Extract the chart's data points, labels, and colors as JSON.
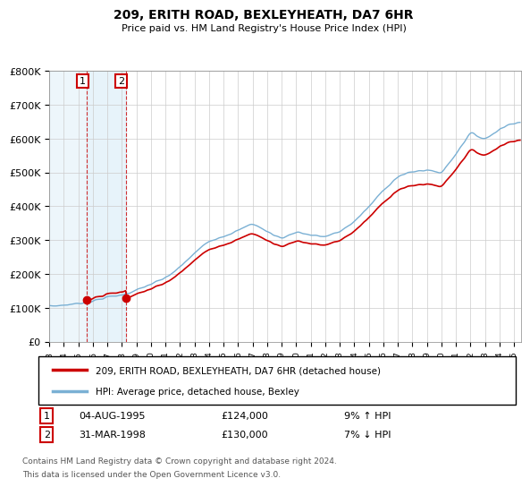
{
  "title": "209, ERITH ROAD, BEXLEYHEATH, DA7 6HR",
  "subtitle": "Price paid vs. HM Land Registry's House Price Index (HPI)",
  "ylim": [
    0,
    800000
  ],
  "yticks": [
    0,
    100000,
    200000,
    300000,
    400000,
    500000,
    600000,
    700000,
    800000
  ],
  "ytick_labels": [
    "£0",
    "£100K",
    "£200K",
    "£300K",
    "£400K",
    "£500K",
    "£600K",
    "£700K",
    "£800K"
  ],
  "sale1_date": "04-AUG-1995",
  "sale1_price": 124000,
  "sale1_hpi_pct": "9% ↑ HPI",
  "sale2_date": "31-MAR-1998",
  "sale2_price": 130000,
  "sale2_hpi_pct": "7% ↓ HPI",
  "sale1_year": 1995.583,
  "sale2_year": 1998.25,
  "line_color_price": "#cc0000",
  "line_color_hpi": "#7ab0d4",
  "legend_label1": "209, ERITH ROAD, BEXLEYHEATH, DA7 6HR (detached house)",
  "legend_label2": "HPI: Average price, detached house, Bexley",
  "footnote_line1": "Contains HM Land Registry data © Crown copyright and database right 2024.",
  "footnote_line2": "This data is licensed under the Open Government Licence v3.0.",
  "sale1_price_str": "£124,000",
  "sale2_price_str": "£130,000",
  "xmin": 1993.0,
  "xmax": 2025.5,
  "hpi_annual_years": [
    1993,
    1994,
    1995,
    1996,
    1997,
    1998,
    1999,
    2000,
    2001,
    2002,
    2003,
    2004,
    2005,
    2006,
    2007,
    2008,
    2009,
    2010,
    2011,
    2012,
    2013,
    2014,
    2015,
    2016,
    2017,
    2018,
    2019,
    2020,
    2021,
    2022,
    2023,
    2024,
    2025
  ],
  "hpi_annual_vals": [
    105000,
    108000,
    113000,
    120000,
    132000,
    138000,
    152000,
    170000,
    188000,
    220000,
    262000,
    298000,
    312000,
    328000,
    350000,
    325000,
    305000,
    325000,
    315000,
    310000,
    325000,
    355000,
    398000,
    448000,
    488000,
    502000,
    508000,
    498000,
    555000,
    618000,
    598000,
    628000,
    648000
  ]
}
